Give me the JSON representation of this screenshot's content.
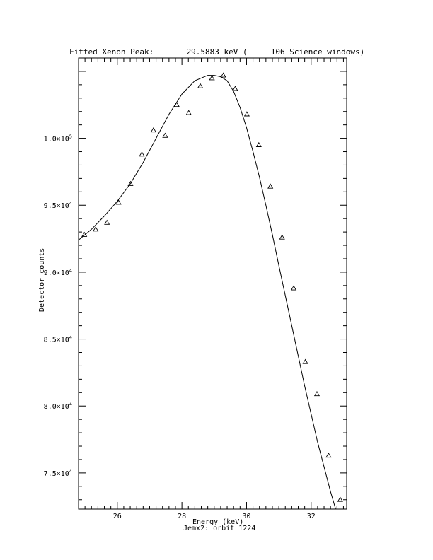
{
  "chart_data": {
    "type": "scatter",
    "title": "Fitted Xenon Peak:       29.5883 keV (     106 Science windows)",
    "xlabel": "Energy (keV)",
    "ylabel": "Detector counts",
    "caption": "Jemx2: orbit 1224",
    "xlim": [
      24.8,
      33.1
    ],
    "ylim": [
      72300,
      106000
    ],
    "grid": false,
    "legend": "none",
    "x_ticks": [
      26,
      28,
      30,
      32
    ],
    "x_tick_labels": [
      "26",
      "28",
      "30",
      "32"
    ],
    "y_ticks": [
      75000,
      80000,
      85000,
      90000,
      95000,
      100000
    ],
    "y_tick_labels": [
      {
        "mant": "7.5×10",
        "exp": "4"
      },
      {
        "mant": "8.0×10",
        "exp": "4"
      },
      {
        "mant": "8.5×10",
        "exp": "4"
      },
      {
        "mant": "9.0×10",
        "exp": "4"
      },
      {
        "mant": "9.5×10",
        "exp": "4"
      },
      {
        "mant": "1.0×10",
        "exp": "5"
      }
    ],
    "series": [
      {
        "kind": "points",
        "marker": "triangle",
        "x": [
          24.98,
          25.33,
          25.68,
          26.04,
          26.41,
          26.76,
          27.12,
          27.48,
          27.84,
          28.21,
          28.57,
          28.93,
          29.28,
          29.65,
          30.01,
          30.38,
          30.74,
          31.1,
          31.46,
          31.82,
          32.18,
          32.54,
          32.9
        ],
        "y": [
          92800,
          93200,
          93700,
          95200,
          96600,
          98800,
          100600,
          100200,
          102500,
          101900,
          103900,
          104500,
          104700,
          103700,
          101800,
          99500,
          96400,
          92600,
          88800,
          83300,
          80900,
          76300,
          73000
        ]
      },
      {
        "kind": "line",
        "x": [
          24.8,
          25.2,
          25.6,
          26.0,
          26.4,
          26.8,
          27.2,
          27.6,
          28.0,
          28.4,
          28.8,
          29.0,
          29.2,
          29.4,
          29.6,
          29.8,
          30.0,
          30.2,
          30.4,
          30.6,
          30.8,
          31.0,
          31.4,
          31.8,
          32.2,
          32.6,
          33.0
        ],
        "y": [
          92400,
          93200,
          94200,
          95300,
          96600,
          98200,
          100000,
          101800,
          103300,
          104300,
          104700,
          104700,
          104600,
          104300,
          103500,
          102300,
          100800,
          99000,
          97100,
          95000,
          92800,
          90500,
          86000,
          81500,
          77300,
          73600,
          70300
        ]
      }
    ]
  }
}
